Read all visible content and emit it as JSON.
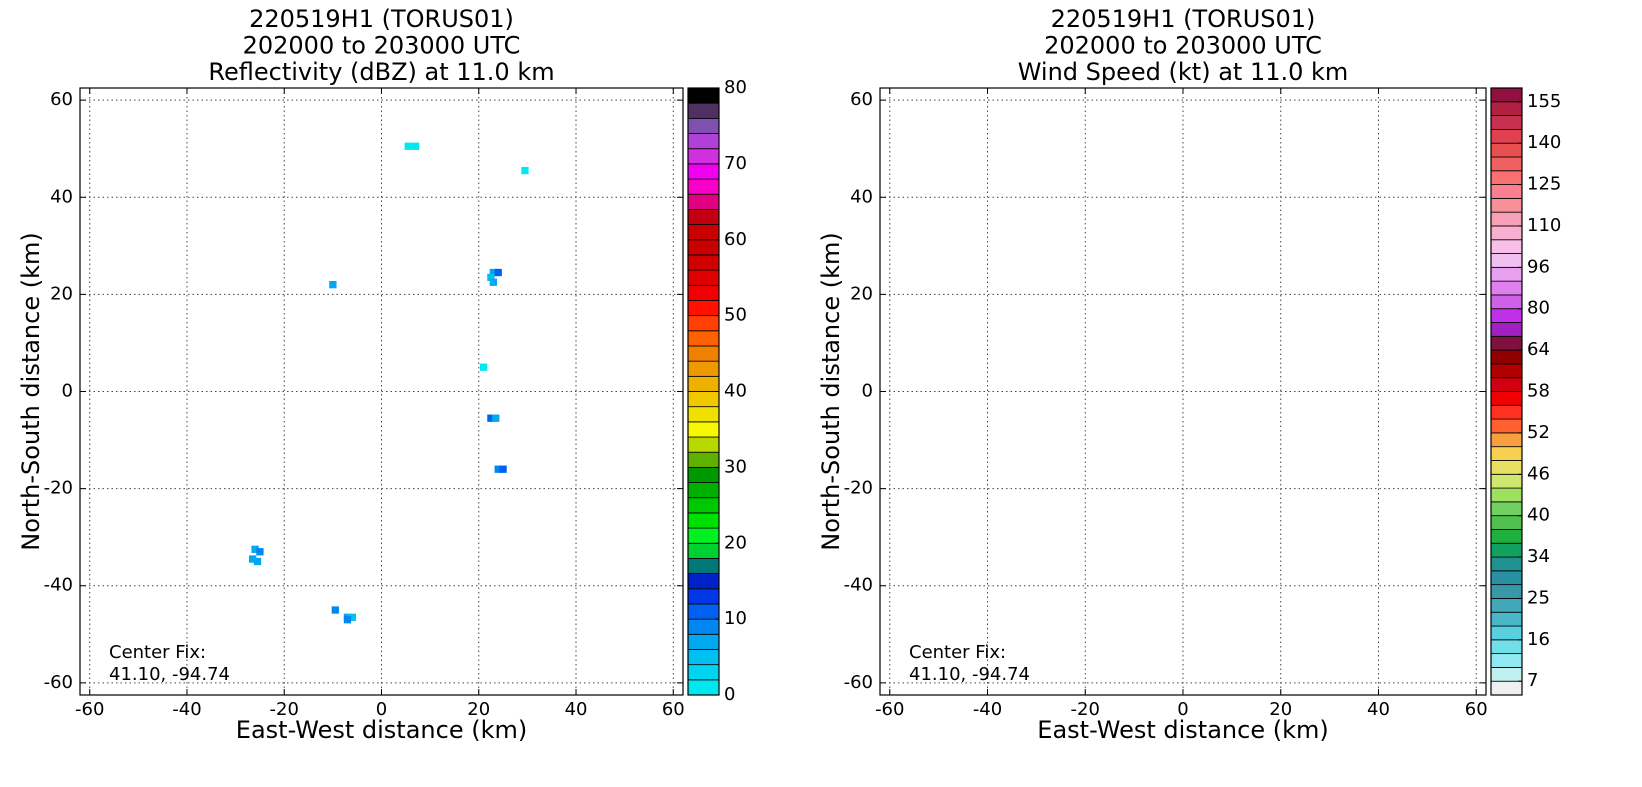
{
  "chart_data": [
    {
      "type": "heatmap",
      "title": [
        "220519H1 (TORUS01)",
        "202000 to 203000 UTC",
        "Reflectivity (dBZ) at 11.0 km"
      ],
      "xlabel": "East-West distance (km)",
      "ylabel": "North-South distance (km)",
      "annotation": [
        "Center Fix:",
        "41.10, -94.74"
      ],
      "xlim": [
        -62,
        62
      ],
      "ylim": [
        -62.5,
        62.5
      ],
      "xticks": [
        -60,
        -40,
        -20,
        0,
        20,
        40,
        60
      ],
      "yticks": [
        -60,
        -40,
        -20,
        0,
        20,
        40,
        60
      ],
      "grid": true,
      "grid_spacing": 1.5,
      "cells": {
        "x": [
          5.5,
          7,
          29.5,
          -10,
          23,
          24,
          22.5,
          23,
          21,
          22.5,
          23.5,
          24,
          25,
          -26,
          -25,
          -26.5,
          -25.5,
          -9.5,
          -7,
          -6,
          -7
        ],
        "y": [
          50.5,
          50.5,
          45.5,
          22,
          24.5,
          24.5,
          23.5,
          22.5,
          5,
          -5.5,
          -5.5,
          -16,
          -16,
          -32.5,
          -33,
          -34.5,
          -35,
          -45,
          -46.5,
          -46.5,
          -47
        ],
        "values": [
          1,
          1,
          1,
          7,
          7,
          10,
          5,
          6,
          1,
          11,
          7,
          9,
          11,
          7,
          9,
          7,
          6,
          9,
          7,
          5,
          9
        ]
      },
      "cbar_levels": [
        0,
        2,
        4,
        6,
        8,
        10,
        12,
        14,
        16,
        18,
        20,
        22,
        24,
        26,
        28,
        30,
        32,
        34,
        36,
        38,
        40,
        42,
        44,
        46,
        48,
        50,
        52,
        54,
        56,
        58,
        60,
        62,
        64,
        66,
        68,
        70,
        72,
        74,
        76,
        78,
        80
      ],
      "cbar_colors": [
        "#00e8ee",
        "#00d4f2",
        "#00bff2",
        "#00a8f0",
        "#0088f0",
        "#0060f0",
        "#0038e8",
        "#0020c8",
        "#007878",
        "#00d030",
        "#00f020",
        "#00e000",
        "#00c800",
        "#00b000",
        "#009800",
        "#60b000",
        "#b8d800",
        "#f8f800",
        "#f0e000",
        "#f0c800",
        "#f0b000",
        "#f09800",
        "#f08000",
        "#ff6000",
        "#ff4000",
        "#ff1000",
        "#f00000",
        "#e00000",
        "#d00000",
        "#c80000",
        "#c80000",
        "#c00010",
        "#e00080",
        "#f800c8",
        "#f000f0",
        "#d030e0",
        "#b040d8",
        "#8050b0",
        "#503060",
        "#000000"
      ],
      "cbar_ticks": [
        0,
        10,
        20,
        30,
        40,
        50,
        60,
        70,
        80
      ]
    },
    {
      "type": "heatmap",
      "title": [
        "220519H1 (TORUS01)",
        "202000 to 203000 UTC",
        "Wind Speed (kt) at 11.0 km"
      ],
      "xlabel": "East-West distance (km)",
      "ylabel": "North-South distance (km)",
      "annotation": [
        "Center Fix:",
        "41.10, -94.74"
      ],
      "xlim": [
        -62,
        62
      ],
      "ylim": [
        -62.5,
        62.5
      ],
      "xticks": [
        -60,
        -40,
        -20,
        0,
        20,
        40,
        60
      ],
      "yticks": [
        -60,
        -40,
        -20,
        0,
        20,
        40,
        60
      ],
      "grid": true,
      "cells": {
        "x": [],
        "y": [],
        "values": []
      },
      "cbar_levels": [
        4,
        7,
        10,
        13,
        16,
        19,
        22,
        25,
        28,
        31,
        34,
        36,
        38,
        40,
        42,
        44,
        46,
        48,
        50,
        52,
        54,
        56,
        58,
        60,
        62,
        64,
        69,
        75,
        80,
        85,
        91,
        96,
        101,
        106,
        110,
        115,
        120,
        125,
        130,
        135,
        140,
        145,
        150,
        155,
        160
      ],
      "cbar_colors": [
        "#f0f0f0",
        "#c0f0f0",
        "#90e8f0",
        "#70e0e8",
        "#58d0e0",
        "#48b8c8",
        "#40a8b8",
        "#3898a8",
        "#2890a0",
        "#209090",
        "#10a060",
        "#20b040",
        "#50c050",
        "#70d060",
        "#a0e060",
        "#d0e870",
        "#e8e060",
        "#f8d050",
        "#f8a040",
        "#ff6030",
        "#ff3020",
        "#f00000",
        "#d00010",
        "#b00000",
        "#900000",
        "#801040",
        "#a020c0",
        "#c030e8",
        "#d060e8",
        "#e080f0",
        "#e8a0f0",
        "#f0c0f0",
        "#f8c0e8",
        "#f8b0d0",
        "#f8a0b8",
        "#f89098",
        "#f88090",
        "#f87070",
        "#f06060",
        "#e85050",
        "#e04050",
        "#c83050",
        "#b02040",
        "#901040"
      ],
      "cbar_ticks": [
        7,
        16,
        25,
        34,
        40,
        46,
        52,
        58,
        64,
        80,
        96,
        110,
        125,
        140,
        155
      ]
    }
  ]
}
